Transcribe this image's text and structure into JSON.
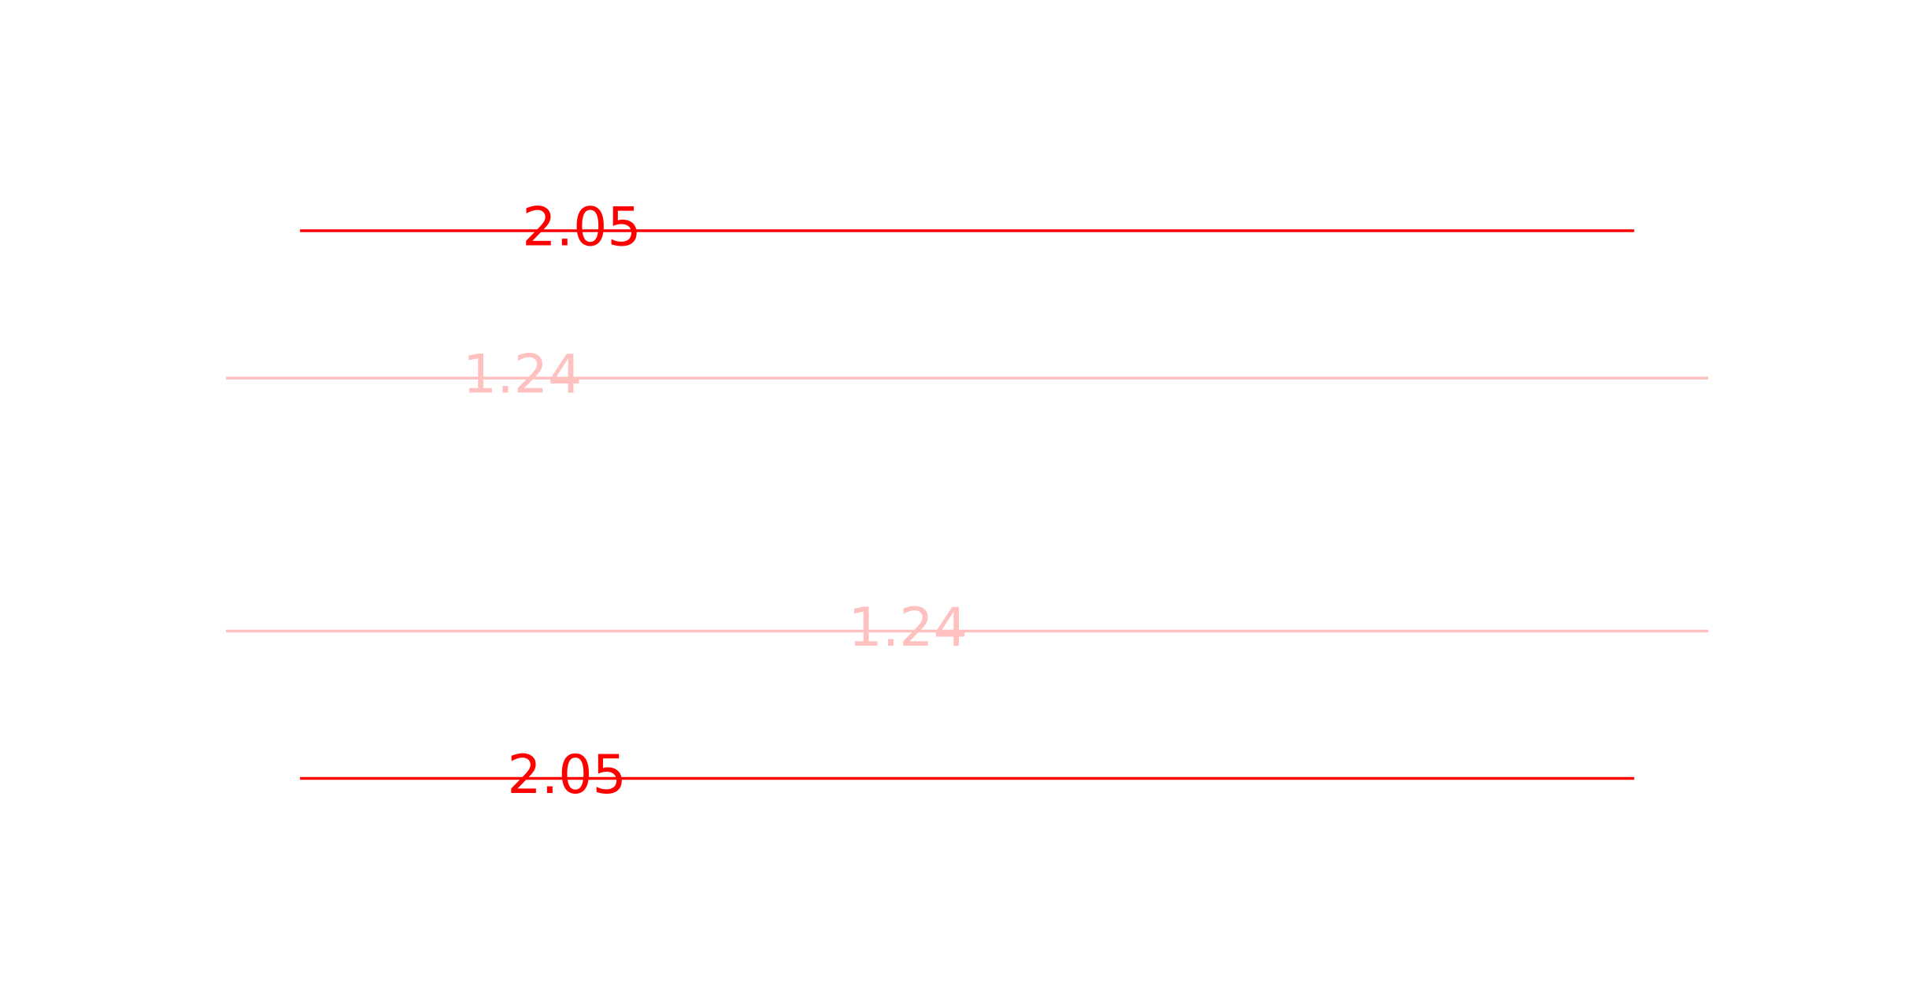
{
  "chart_data": {
    "type": "line",
    "title": "",
    "xlabel": "",
    "ylabel": "",
    "grid": false,
    "axes_visible": false,
    "xlim": [
      0,
      10
    ],
    "ylim": [
      -3,
      3
    ],
    "series": [
      {
        "label": "2.05",
        "y": 2.05,
        "x_range": [
          0.5,
          9.5
        ],
        "label_x": 2.4,
        "color": "#ff0000"
      },
      {
        "label": "1.24",
        "y": 1.24,
        "x_range": [
          0,
          10
        ],
        "label_x": 2.0,
        "color": "#ffc0c0"
      },
      {
        "label": "1.24",
        "y": -0.15,
        "x_range": [
          0,
          10
        ],
        "label_x": 4.6,
        "color": "#ffc0c0"
      },
      {
        "label": "2.05",
        "y": -0.96,
        "x_range": [
          0.5,
          9.5
        ],
        "label_x": 2.3,
        "color": "#ff0000"
      }
    ]
  }
}
